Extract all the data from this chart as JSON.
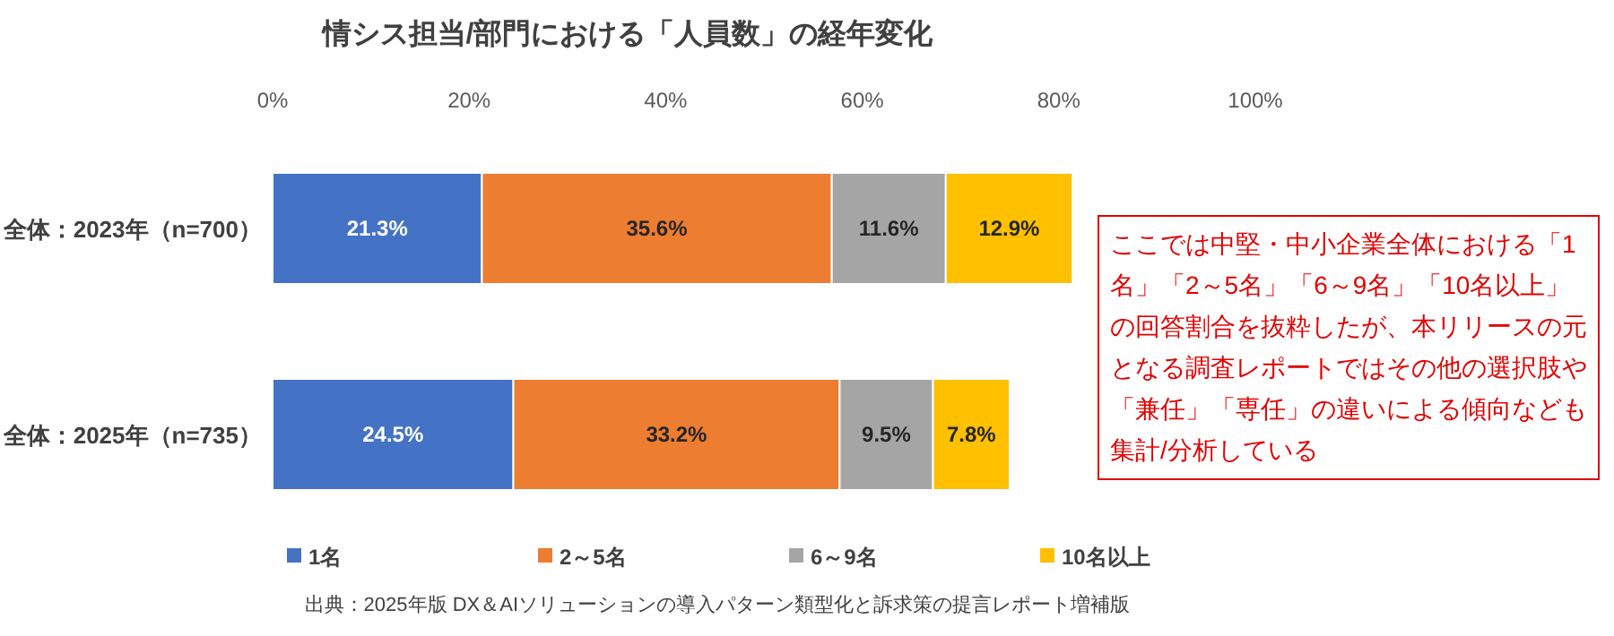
{
  "chart_data": {
    "type": "bar",
    "orientation": "horizontal",
    "stacked": true,
    "title": "情シス担当/部門における「人員数」の経年変化",
    "categories": [
      "全体：2023年（n=700）",
      "全体：2025年（n=735）"
    ],
    "series": [
      {
        "name": "1名",
        "color": "#4472c4",
        "values": [
          21.3,
          24.5
        ],
        "value_labels": [
          "21.3%",
          "24.5%"
        ]
      },
      {
        "name": "2～5名",
        "color": "#ed7d31",
        "values": [
          35.6,
          33.2
        ],
        "value_labels": [
          "35.6%",
          "33.2%"
        ]
      },
      {
        "name": "6～9名",
        "color": "#a5a5a5",
        "values": [
          11.6,
          9.5
        ],
        "value_labels": [
          "11.6%",
          "9.5%"
        ]
      },
      {
        "name": "10名以上",
        "color": "#ffc000",
        "values": [
          12.9,
          7.8
        ],
        "value_labels": [
          "12.9%",
          "7.8%"
        ]
      }
    ],
    "xlim": [
      0,
      100
    ],
    "xticks": [
      {
        "value": 0,
        "label": "0%"
      },
      {
        "value": 20,
        "label": "20%"
      },
      {
        "value": 40,
        "label": "40%"
      },
      {
        "value": 60,
        "label": "60%"
      },
      {
        "value": 80,
        "label": "80%"
      },
      {
        "value": 100,
        "label": "100%"
      }
    ],
    "legend": "bottom",
    "grid": false,
    "annotations": [
      "ここでは中堅・中小企業全体における「1名」「2～5名」「6～9名」「10名以上」の回答割合を抜粋したが、本リリースの元となる調査レポートではその他の選択肢や「兼任」「専任」の違いによる傾向なども集計/分析している",
      "出典：2025年版 DX＆AIソリューションの導入パターン類型化と訴求策の提言レポート増補版"
    ]
  }
}
